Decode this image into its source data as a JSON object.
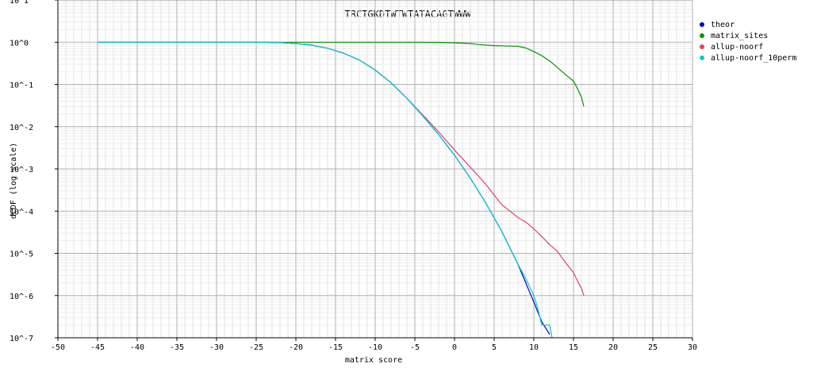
{
  "chart_data": {
    "type": "line",
    "title": "TRCTGKDTWTWTATACAGTWWW",
    "xlabel": "matrix score",
    "ylabel": "dCDF (log scale)",
    "xlim": [
      -50,
      30
    ],
    "y_scale": "log",
    "ylim": [
      1e-07,
      10
    ],
    "x_ticks": [
      "-50",
      "-45",
      "-40",
      "-35",
      "-30",
      "-25",
      "-20",
      "-15",
      "-10",
      "-5",
      "0",
      "5",
      "10",
      "15",
      "20",
      "25",
      "30"
    ],
    "y_ticks": [
      "10^-7",
      "10^-6",
      "10^-5",
      "10^-4",
      "10^-3",
      "10^-2",
      "10^-1",
      "10^0",
      "10^1"
    ],
    "grid": true,
    "legend_position": "right",
    "series": [
      {
        "name": "theor",
        "color": "#0000cc",
        "points": [
          [
            -45,
            1
          ],
          [
            -25,
            1
          ],
          [
            -22,
            0.98
          ],
          [
            -20,
            0.93
          ],
          [
            -18,
            0.85
          ],
          [
            -16,
            0.72
          ],
          [
            -14,
            0.55
          ],
          [
            -12,
            0.38
          ],
          [
            -10,
            0.22
          ],
          [
            -8,
            0.11
          ],
          [
            -6,
            0.047
          ],
          [
            -4,
            0.018
          ],
          [
            -2,
            0.0065
          ],
          [
            0,
            0.0021
          ],
          [
            2,
            0.0006
          ],
          [
            4,
            0.00015
          ],
          [
            6,
            3.2e-05
          ],
          [
            8,
            5.5e-06
          ],
          [
            10,
            7e-07
          ],
          [
            11,
            2.4e-07
          ],
          [
            12,
            1.2e-07
          ]
        ]
      },
      {
        "name": "matrix_sites",
        "color": "#009900",
        "points": [
          [
            -45,
            1
          ],
          [
            -20,
            1
          ],
          [
            -10,
            0.999
          ],
          [
            -5,
            0.998
          ],
          [
            -2,
            0.99
          ],
          [
            0,
            0.97
          ],
          [
            2,
            0.93
          ],
          [
            3,
            0.88
          ],
          [
            5,
            0.83
          ],
          [
            8,
            0.8
          ],
          [
            9,
            0.73
          ],
          [
            10,
            0.6
          ],
          [
            11,
            0.48
          ],
          [
            12,
            0.36
          ],
          [
            13,
            0.25
          ],
          [
            14,
            0.17
          ],
          [
            15,
            0.12
          ],
          [
            15.5,
            0.08
          ],
          [
            16,
            0.05
          ],
          [
            16.3,
            0.03
          ]
        ]
      },
      {
        "name": "allup-noorf",
        "color": "#e04070",
        "points": [
          [
            -45,
            1
          ],
          [
            -25,
            1
          ],
          [
            -22,
            0.98
          ],
          [
            -20,
            0.93
          ],
          [
            -18,
            0.85
          ],
          [
            -16,
            0.72
          ],
          [
            -14,
            0.55
          ],
          [
            -12,
            0.38
          ],
          [
            -10,
            0.22
          ],
          [
            -8,
            0.11
          ],
          [
            -6,
            0.047
          ],
          [
            -4,
            0.019
          ],
          [
            -2,
            0.0075
          ],
          [
            0,
            0.0028
          ],
          [
            2,
            0.0011
          ],
          [
            4,
            0.00042
          ],
          [
            5,
            0.00024
          ],
          [
            6,
            0.00014
          ],
          [
            7,
            0.0001
          ],
          [
            8,
            7e-05
          ],
          [
            9,
            5.5e-05
          ],
          [
            10,
            3.8e-05
          ],
          [
            11,
            2.5e-05
          ],
          [
            12,
            1.6e-05
          ],
          [
            13,
            1.1e-05
          ],
          [
            14,
            6e-06
          ],
          [
            15,
            3.5e-06
          ],
          [
            15.5,
            2.2e-06
          ],
          [
            16,
            1.5e-06
          ],
          [
            16.3,
            1e-06
          ]
        ]
      },
      {
        "name": "allup-noorf_10perm",
        "color": "#00cccc",
        "points": [
          [
            -45,
            1
          ],
          [
            -25,
            1
          ],
          [
            -22,
            0.98
          ],
          [
            -20,
            0.93
          ],
          [
            -18,
            0.85
          ],
          [
            -16,
            0.72
          ],
          [
            -14,
            0.55
          ],
          [
            -12,
            0.38
          ],
          [
            -10,
            0.22
          ],
          [
            -8,
            0.11
          ],
          [
            -6,
            0.047
          ],
          [
            -4,
            0.018
          ],
          [
            -2,
            0.0065
          ],
          [
            0,
            0.0021
          ],
          [
            2,
            0.0006
          ],
          [
            4,
            0.00015
          ],
          [
            6,
            3.2e-05
          ],
          [
            8,
            5.5e-06
          ],
          [
            9,
            2.5e-06
          ],
          [
            10,
            1e-06
          ],
          [
            10.5,
            5e-07
          ],
          [
            11,
            2e-07
          ],
          [
            12,
            2e-07
          ],
          [
            12.3,
            1e-07
          ]
        ]
      }
    ]
  }
}
